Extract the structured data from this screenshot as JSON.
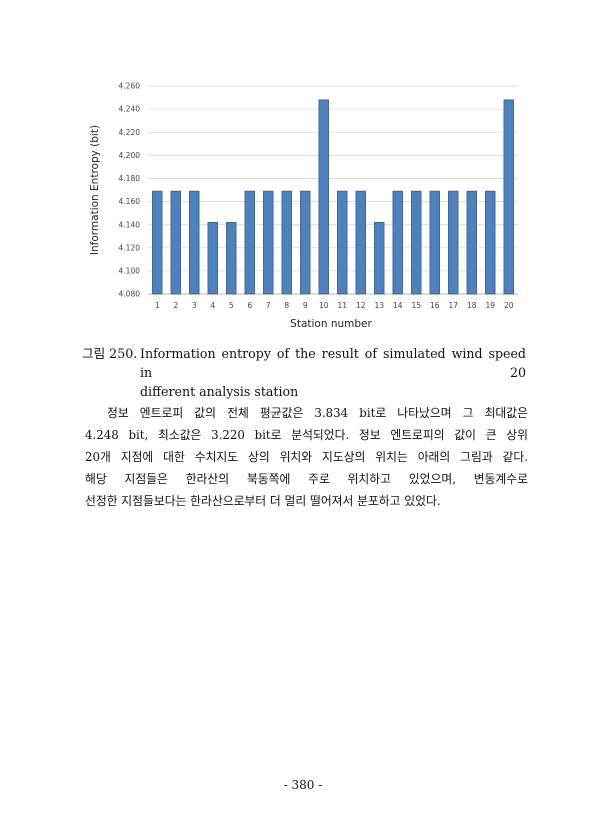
{
  "chart_data": {
    "type": "bar",
    "title": "",
    "xlabel": "Station number",
    "ylabel": "Information Entropy (bit)",
    "categories": [
      "1",
      "2",
      "3",
      "4",
      "5",
      "6",
      "7",
      "8",
      "9",
      "10",
      "11",
      "12",
      "13",
      "14",
      "15",
      "16",
      "17",
      "18",
      "19",
      "20"
    ],
    "values": [
      4.169,
      4.169,
      4.169,
      4.142,
      4.142,
      4.169,
      4.169,
      4.169,
      4.169,
      4.248,
      4.169,
      4.169,
      4.142,
      4.169,
      4.169,
      4.169,
      4.169,
      4.169,
      4.169,
      4.248
    ],
    "ylim": [
      4.08,
      4.26
    ],
    "yticks": [
      "4.080",
      "4.100",
      "4.120",
      "4.140",
      "4.160",
      "4.180",
      "4.200",
      "4.220",
      "4.240",
      "4.260"
    ],
    "grid": true,
    "bar_color": "#4f81bd",
    "bar_edge_color": "#385d8a"
  },
  "caption": {
    "label": "그림 250.",
    "text_line1": "Information entropy of the result of simulated wind speed in 20",
    "text_line2": "different analysis station"
  },
  "paragraph": {
    "lines": [
      "정보 엔트로피 값의 전체 평균값은 3.834 bit로 나타났으며 그 최대값은",
      "4.248 bit, 최소값은 3.220 bit로 분석되었다. 정보 엔트로피의 값이 큰 상위",
      "20개 지점에 대한 수치지도 상의 위치와 지도상의 위치는 아래의 그림과 같다.",
      "해당 지점들은 한라산의 북동쪽에 주로 위치하고 있었으며, 변동계수로",
      "선정한 지점들보다는 한라산으로부터 더 멀리 떨어져서 분포하고 있었다."
    ]
  },
  "page_number": "- 380 -"
}
